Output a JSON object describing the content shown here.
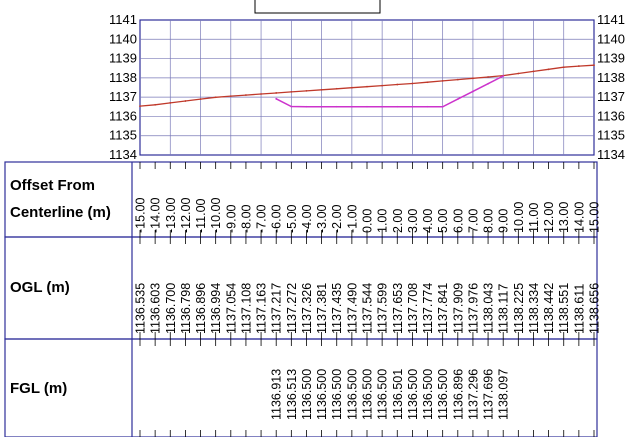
{
  "chart_data": {
    "type": "line",
    "title": "",
    "xlabel": "Offset From Centerline (m)",
    "ylabel": "",
    "xlim": [
      -15,
      15
    ],
    "ylim": [
      1134,
      1141
    ],
    "y_ticks": [
      "1134",
      "1135",
      "1136",
      "1137",
      "1138",
      "1139",
      "1140",
      "1141"
    ],
    "grid": true,
    "x": [
      -15,
      -14,
      -13,
      -12,
      -11,
      -10,
      -9,
      -8,
      -7,
      -6,
      -5,
      -4,
      -3,
      -2,
      -1,
      0,
      1,
      2,
      3,
      4,
      5,
      6,
      7,
      8,
      9,
      10,
      11,
      12,
      13,
      14,
      15
    ],
    "series": [
      {
        "name": "OGL (m)",
        "color": "#c0392b",
        "x": [
          -15,
          -14,
          -13,
          -12,
          -11,
          -10,
          -9,
          -8,
          -7,
          -6,
          -5,
          -4,
          -3,
          -2,
          -1,
          0,
          1,
          2,
          3,
          4,
          5,
          6,
          7,
          8,
          9,
          10,
          11,
          12,
          13,
          14,
          15
        ],
        "values": [
          1136.535,
          1136.603,
          1136.7,
          1136.798,
          1136.896,
          1136.994,
          1137.054,
          1137.108,
          1137.163,
          1137.217,
          1137.272,
          1137.326,
          1137.381,
          1137.435,
          1137.49,
          1137.544,
          1137.599,
          1137.653,
          1137.708,
          1137.774,
          1137.841,
          1137.909,
          1137.976,
          1138.043,
          1138.117,
          1138.225,
          1138.334,
          1138.442,
          1138.551,
          1138.611,
          1138.656
        ]
      },
      {
        "name": "FGL (m)",
        "color": "#cc33cc",
        "x": [
          -6,
          -5,
          -4,
          -3,
          -2,
          -1,
          0,
          1,
          2,
          3,
          4,
          5,
          6,
          7,
          8,
          9
        ],
        "values": [
          1136.913,
          1136.513,
          1136.5,
          1136.5,
          1136.5,
          1136.5,
          1136.5,
          1136.5,
          1136.501,
          1136.5,
          1136.5,
          1136.5,
          1136.896,
          1137.296,
          1137.696,
          1138.097
        ]
      }
    ],
    "table": {
      "row_labels": [
        [
          "Offset From",
          "Centerline (m)"
        ],
        [
          "OGL (m)"
        ],
        [
          "FGL (m)"
        ]
      ],
      "offset_labels": [
        "-15.00",
        "-14.00",
        "-13.00",
        "-12.00",
        "-11.00",
        "-10.00",
        "-9.00",
        "-8.00",
        "-7.00",
        "-6.00",
        "-5.00",
        "-4.00",
        "-3.00",
        "-2.00",
        "-1.00",
        "0.00",
        "1.00",
        "2.00",
        "3.00",
        "4.00",
        "5.00",
        "6.00",
        "7.00",
        "8.00",
        "9.00",
        "10.00",
        "11.00",
        "12.00",
        "13.00",
        "14.00",
        "15.00"
      ],
      "ogl_labels": [
        "1136.535",
        "1136.603",
        "1136.700",
        "1136.798",
        "1136.896",
        "1136.994",
        "1137.054",
        "1137.108",
        "1137.163",
        "1137.217",
        "1137.272",
        "1137.326",
        "1137.381",
        "1137.435",
        "1137.490",
        "1137.544",
        "1137.599",
        "1137.653",
        "1137.708",
        "1137.774",
        "1137.841",
        "1137.909",
        "1137.976",
        "1138.043",
        "1138.117",
        "1138.225",
        "1138.334",
        "1138.442",
        "1138.551",
        "1138.611",
        "1138.656"
      ],
      "fgl_labels": [
        "",
        "",
        "",
        "",
        "",
        "",
        "",
        "",
        "",
        "1136.913",
        "1136.513",
        "1136.500",
        "1136.500",
        "1136.500",
        "1136.500",
        "1136.500",
        "1136.500",
        "1136.501",
        "1136.500",
        "1136.500",
        "1136.500",
        "1136.896",
        "1137.296",
        "1137.696",
        "1138.097",
        "",
        "",
        "",
        "",
        "",
        ""
      ]
    }
  }
}
